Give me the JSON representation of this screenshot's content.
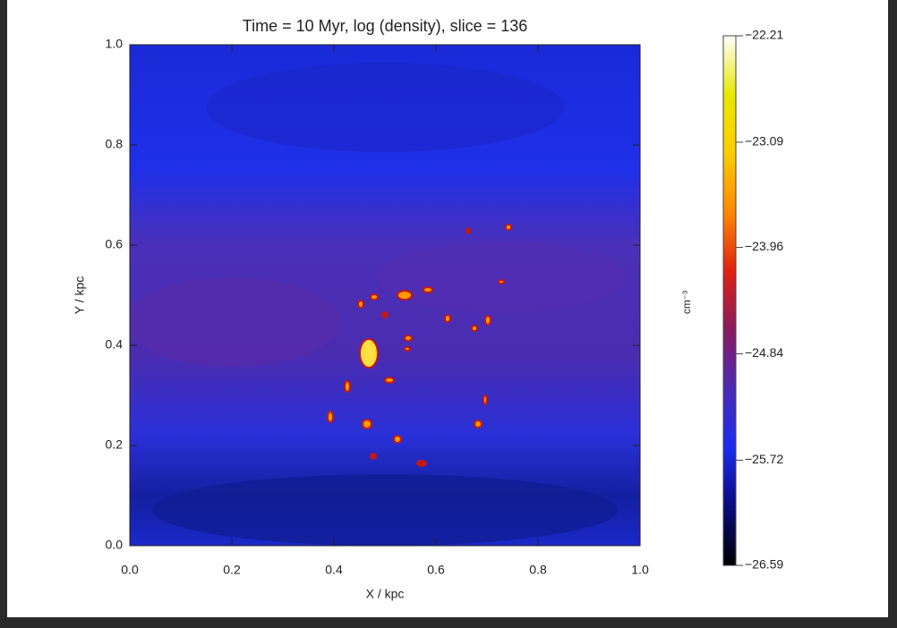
{
  "chart_data": {
    "type": "image",
    "title": "Time = 10 Myr,  log (density), slice = 136",
    "xlabel": "X / kpc",
    "ylabel": "Y / kpc",
    "xlim": [
      0,
      1
    ],
    "ylim": [
      0,
      1
    ],
    "xticks": [
      {
        "value": 0,
        "label": "0.0"
      },
      {
        "value": 0.2,
        "label": "0.2"
      },
      {
        "value": 0.4,
        "label": "0.4"
      },
      {
        "value": 0.6,
        "label": "0.6"
      },
      {
        "value": 0.8,
        "label": "0.8"
      },
      {
        "value": 1,
        "label": "1.0"
      }
    ],
    "yticks": [
      {
        "value": 0,
        "label": "0.0"
      },
      {
        "value": 0.2,
        "label": "0.2"
      },
      {
        "value": 0.4,
        "label": "0.4"
      },
      {
        "value": 0.6,
        "label": "0.6"
      },
      {
        "value": 0.8,
        "label": "0.8"
      },
      {
        "value": 1,
        "label": "1.0"
      }
    ],
    "colorbar": {
      "label": "cm⁻³",
      "lim": [
        -26.59,
        -22.21
      ],
      "ticks": [
        {
          "value": -22.21,
          "label": "−22.21"
        },
        {
          "value": -23.09,
          "label": "−23.09"
        },
        {
          "value": -23.96,
          "label": "−23.96"
        },
        {
          "value": -24.84,
          "label": "−24.84"
        },
        {
          "value": -25.72,
          "label": "−25.72"
        },
        {
          "value": -26.59,
          "label": "−26.59"
        }
      ],
      "colormap": [
        "#000000",
        "#0a0a80",
        "#1a2cf0",
        "#4a2ab8",
        "#8a1a60",
        "#e02010",
        "#ff8800",
        "#ffcc00",
        "#e8e800",
        "#ffffff"
      ]
    }
  }
}
